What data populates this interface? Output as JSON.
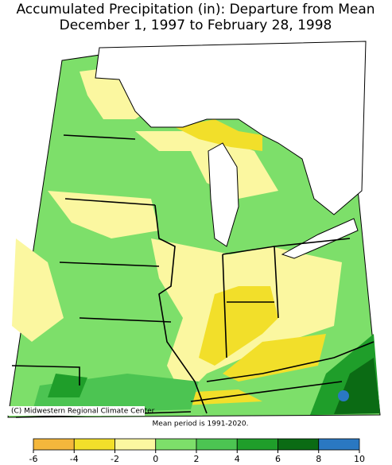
{
  "header": {
    "title": "Accumulated Precipitation (in): Departure from Mean",
    "subtitle": "December 1, 1997 to February 28, 1998"
  },
  "map": {
    "credit": "(C) Midwestern Regional Climate Center",
    "note": "Mean period is 1991-2020."
  },
  "legend": {
    "ticks": [
      -6,
      -4,
      -2,
      0,
      2,
      4,
      6,
      8,
      10
    ],
    "colors": [
      "#f4b73c",
      "#f2df2a",
      "#fbf7a0",
      "#7ddf6a",
      "#4cc452",
      "#1f9e2a",
      "#0b6b14",
      "#2a78c2"
    ]
  }
}
